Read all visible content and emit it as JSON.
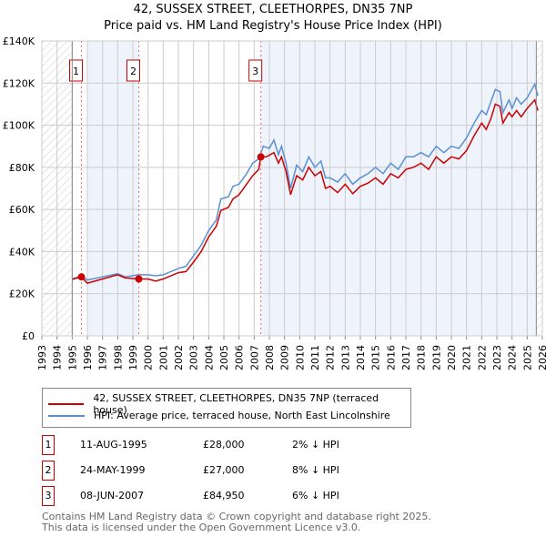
{
  "chart_data": {
    "type": "line",
    "title": "42, SUSSEX STREET, CLEETHORPES, DN35 7NP",
    "subtitle": "Price paid vs. HM Land Registry's House Price Index (HPI)",
    "xlim": [
      1993,
      2026
    ],
    "ylim": [
      0,
      140000
    ],
    "y_ticks": [
      "£0",
      "£20K",
      "£40K",
      "£60K",
      "£80K",
      "£100K",
      "£120K",
      "£140K"
    ],
    "x_ticks": [
      "1993",
      "1994",
      "1995",
      "1996",
      "1997",
      "1998",
      "1999",
      "2000",
      "2001",
      "2002",
      "2003",
      "2004",
      "2005",
      "2006",
      "2007",
      "2008",
      "2009",
      "2010",
      "2011",
      "2012",
      "2013",
      "2014",
      "2015",
      "2016",
      "2017",
      "2018",
      "2019",
      "2020",
      "2021",
      "2022",
      "2023",
      "2024",
      "2025",
      "2026"
    ],
    "data_end": 2025.6,
    "series": [
      {
        "name": "42, SUSSEX STREET, CLEETHORPES, DN35 7NP (terraced house)",
        "color": "#cc0000",
        "x": [
          1995.0,
          1995.6,
          1996.0,
          1997,
          1998,
          1998.5,
          1999.4,
          2000,
          2000.5,
          2001,
          2002,
          2002.5,
          2003,
          2003.5,
          2004,
          2004.5,
          2004.8,
          2005.3,
          2005.6,
          2006,
          2006.5,
          2006.9,
          2007.3,
          2007.44,
          2007.8,
          2008.3,
          2008.6,
          2008.8,
          2009.1,
          2009.4,
          2009.8,
          2010.2,
          2010.6,
          2011,
          2011.4,
          2011.7,
          2012,
          2012.5,
          2013,
          2013.5,
          2014,
          2014.5,
          2015,
          2015.5,
          2016,
          2016.5,
          2017,
          2017.5,
          2018,
          2018.5,
          2019,
          2019.5,
          2020,
          2020.5,
          2021,
          2021.5,
          2022,
          2022.3,
          2022.6,
          2022.9,
          2023.2,
          2023.4,
          2023.8,
          2024,
          2024.3,
          2024.6,
          2025,
          2025.5,
          2025.7
        ],
        "y": [
          26800,
          28000,
          25000,
          27000,
          29000,
          27500,
          27000,
          27000,
          26000,
          27000,
          30000,
          30500,
          35000,
          40000,
          47000,
          52000,
          59500,
          61000,
          65000,
          67000,
          72000,
          76000,
          79000,
          84950,
          85000,
          87000,
          82000,
          85000,
          78000,
          67000,
          76000,
          74000,
          80000,
          76000,
          78000,
          70000,
          71000,
          68000,
          72000,
          67500,
          71000,
          72500,
          75000,
          72000,
          77000,
          75000,
          79000,
          80000,
          82000,
          79000,
          85000,
          82000,
          85000,
          84000,
          88000,
          95000,
          101000,
          98000,
          103000,
          110000,
          109000,
          101000,
          106000,
          104000,
          107000,
          104000,
          108000,
          112000,
          107000
        ]
      },
      {
        "name": "HPI: Average price, terraced house, North East Lincolnshire",
        "color": "#5b8fd4",
        "x": [
          1995.0,
          1995.6,
          1996.0,
          1997,
          1998,
          1998.5,
          1999.4,
          2000,
          2000.5,
          2001,
          2002,
          2002.5,
          2003,
          2003.5,
          2004,
          2004.5,
          2004.8,
          2005.3,
          2005.6,
          2006,
          2006.5,
          2006.9,
          2007.3,
          2007.6,
          2008,
          2008.3,
          2008.6,
          2008.8,
          2009.1,
          2009.4,
          2009.8,
          2010.2,
          2010.6,
          2011,
          2011.4,
          2011.7,
          2012,
          2012.5,
          2013,
          2013.5,
          2014,
          2014.5,
          2015,
          2015.5,
          2016,
          2016.5,
          2017,
          2017.5,
          2018,
          2018.5,
          2019,
          2019.5,
          2020,
          2020.5,
          2021,
          2021.5,
          2022,
          2022.3,
          2022.6,
          2022.9,
          2023.2,
          2023.4,
          2023.8,
          2024,
          2024.3,
          2024.6,
          2025,
          2025.5,
          2025.7
        ],
        "y": [
          27000,
          28500,
          26500,
          28000,
          29500,
          28000,
          29000,
          29000,
          28500,
          29000,
          32000,
          33000,
          38000,
          43000,
          50000,
          55000,
          65000,
          66000,
          71000,
          72000,
          77000,
          82000,
          84000,
          90000,
          89000,
          93000,
          86000,
          90000,
          82000,
          70000,
          81000,
          78000,
          85000,
          80000,
          83000,
          75000,
          75000,
          73000,
          77000,
          72000,
          75000,
          77000,
          80000,
          77000,
          82000,
          79000,
          85000,
          85000,
          87000,
          85000,
          90000,
          87000,
          90000,
          89000,
          94000,
          101000,
          107000,
          105000,
          111000,
          117000,
          116000,
          106000,
          112000,
          108000,
          113000,
          110000,
          113000,
          119500,
          114000
        ]
      }
    ],
    "sales": [
      {
        "label": "1",
        "date": "11-AUG-1995",
        "x": 1995.61,
        "price": 28000,
        "price_text": "£28,000",
        "hpi": "2% ↓ HPI"
      },
      {
        "label": "2",
        "date": "24-MAY-1999",
        "x": 1999.39,
        "price": 27000,
        "price_text": "£27,000",
        "hpi": "8% ↓ HPI"
      },
      {
        "label": "3",
        "date": "08-JUN-2007",
        "x": 2007.44,
        "price": 84950,
        "price_text": "£84,950",
        "hpi": "6% ↓ HPI"
      }
    ]
  },
  "footer": {
    "line1": "Contains HM Land Registry data © Crown copyright and database right 2025.",
    "line2": "This data is licensed under the Open Government Licence v3.0."
  }
}
